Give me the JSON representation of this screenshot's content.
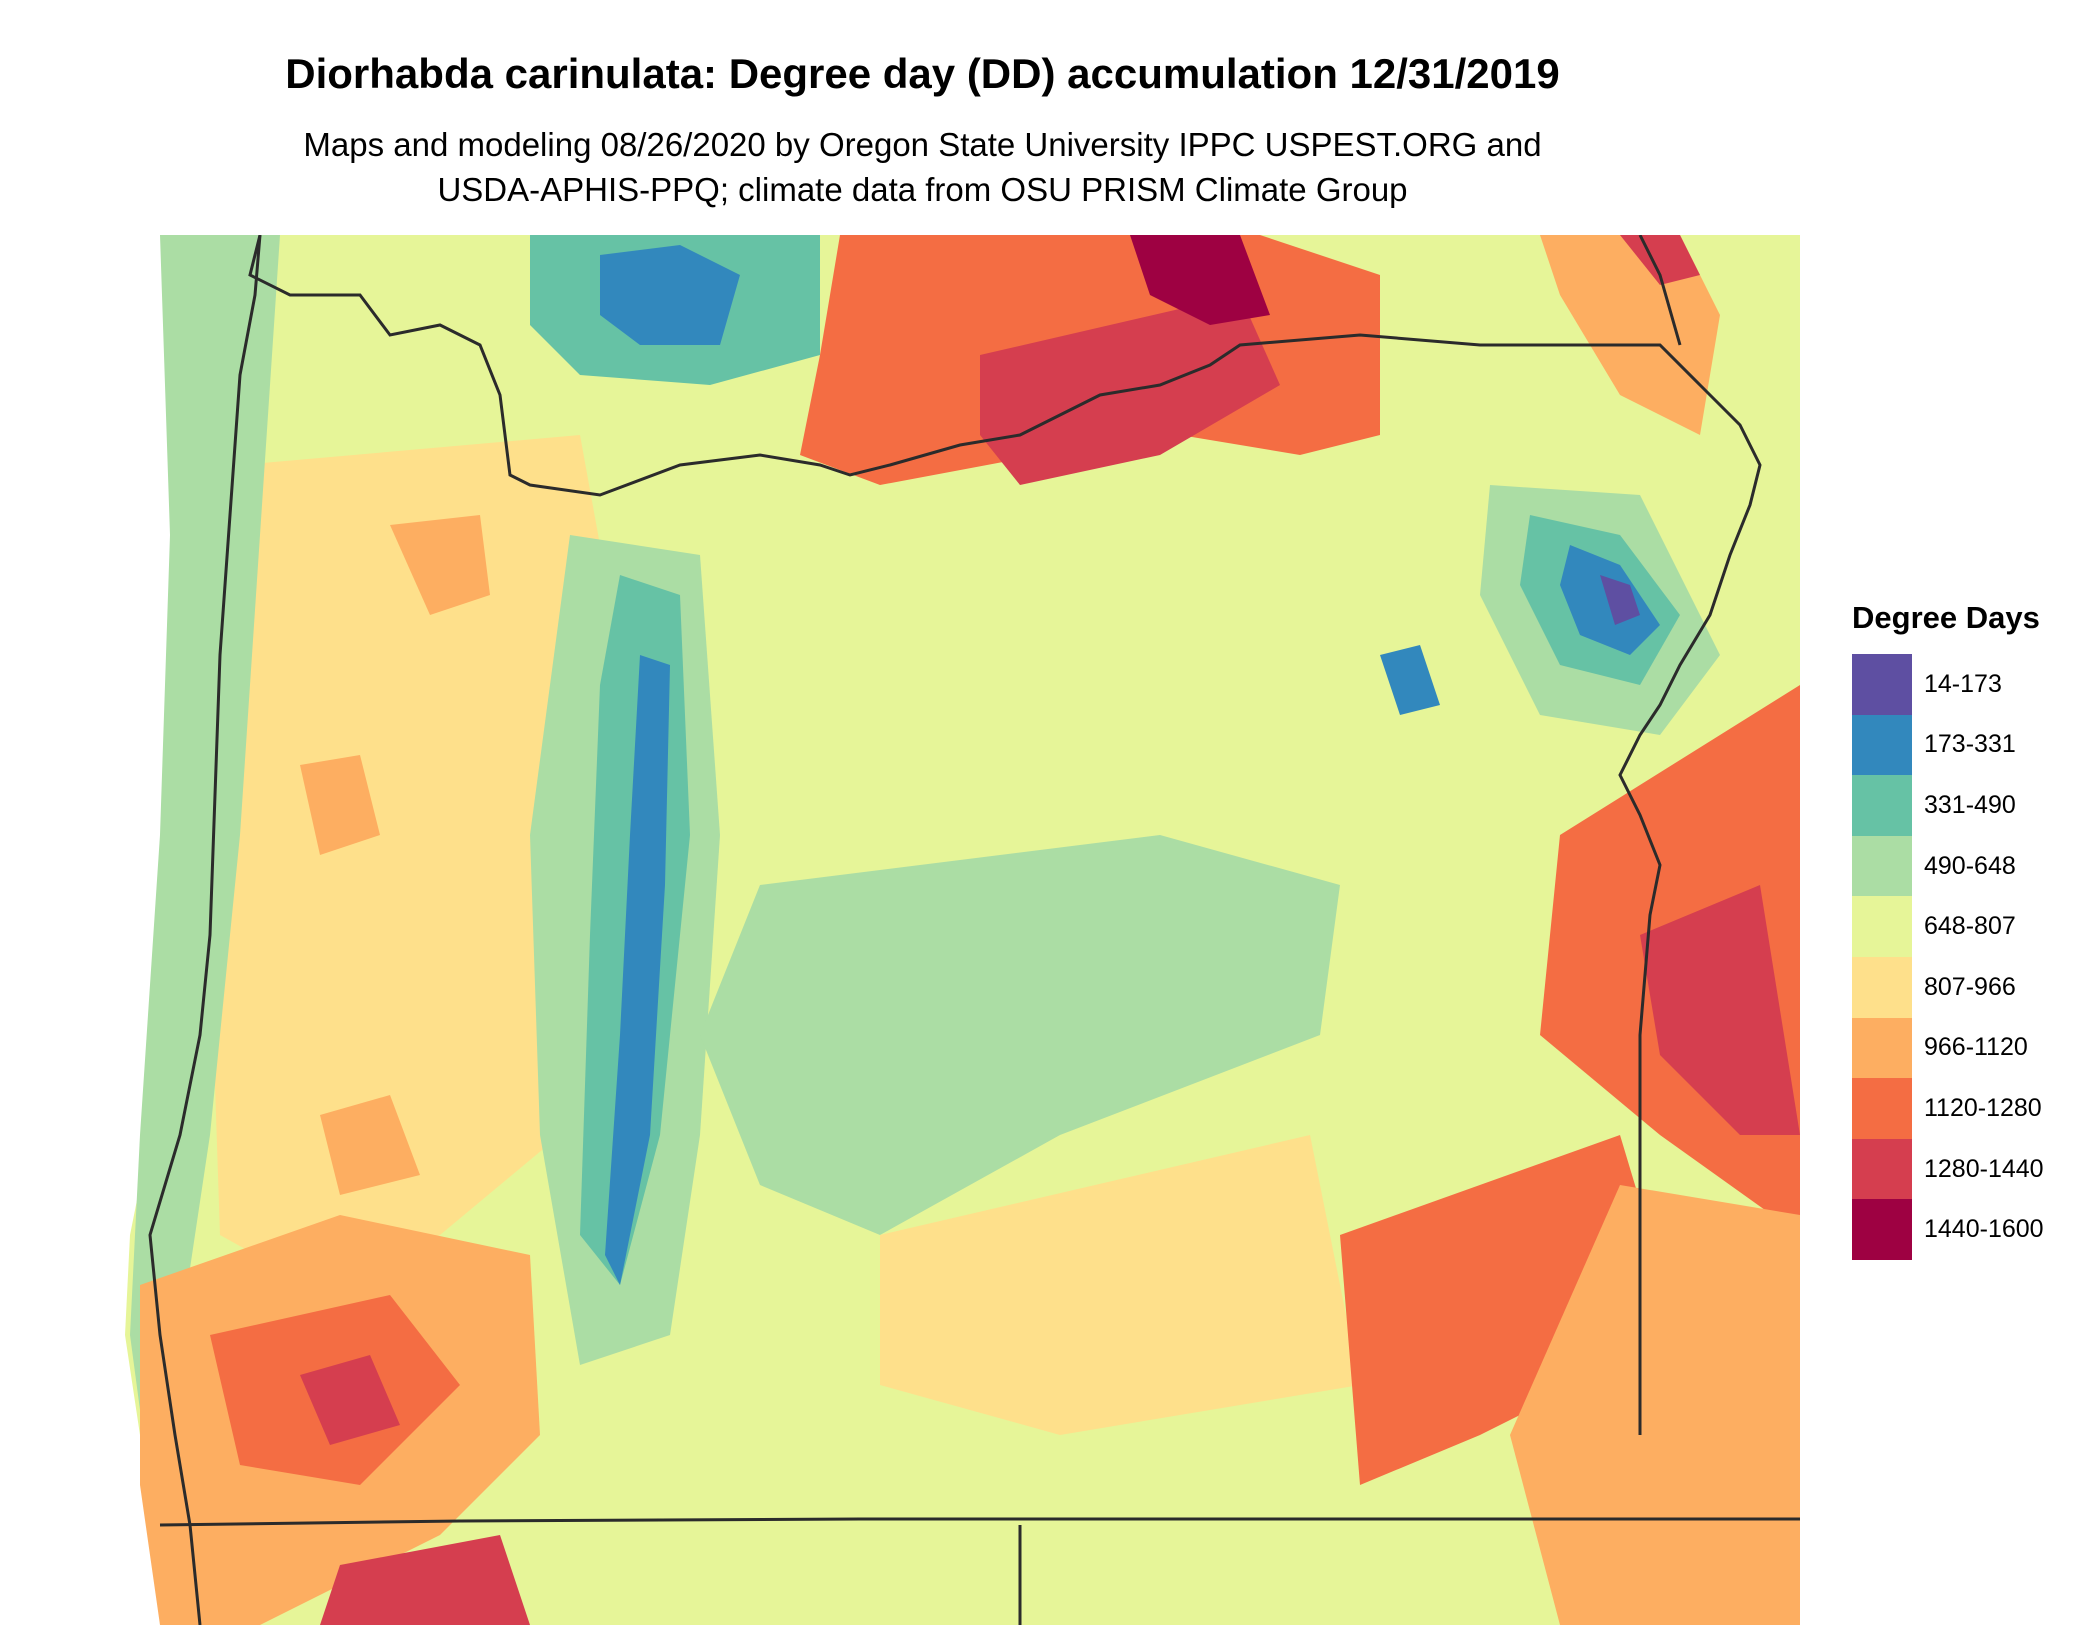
{
  "title": "Diorhabda carinulata: Degree day (DD) accumulation 12/31/2019",
  "subtitle_line1": "Maps and modeling 08/26/2020 by Oregon State University IPPC USPEST.ORG and",
  "subtitle_line2": "USDA-APHIS-PPQ; climate data from OSU PRISM Climate Group",
  "legend": {
    "title": "Degree Days",
    "items": [
      {
        "label": "14-173",
        "color": "#5e4fa2"
      },
      {
        "label": "173-331",
        "color": "#3288bd"
      },
      {
        "label": "331-490",
        "color": "#66c2a5"
      },
      {
        "label": "490-648",
        "color": "#abdda4"
      },
      {
        "label": "648-807",
        "color": "#e6f598"
      },
      {
        "label": "807-966",
        "color": "#fee08b"
      },
      {
        "label": "966-1120",
        "color": "#fdae61"
      },
      {
        "label": "1120-1280",
        "color": "#f46d43"
      },
      {
        "label": "1280-1440",
        "color": "#d53e4f"
      },
      {
        "label": "1440-1600",
        "color": "#9e0142"
      }
    ]
  }
}
